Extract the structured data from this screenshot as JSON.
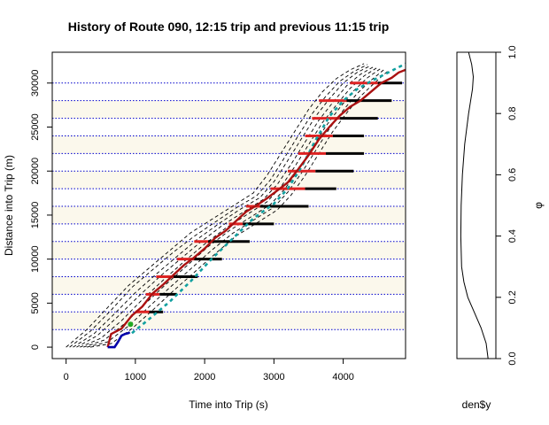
{
  "chart_data": [
    {
      "type": "line",
      "title": "History of Route 090, 12:15 trip and previous 11:15 trip",
      "xlabel": "Time into Trip (s)",
      "ylabel": "Distance into Trip (m)",
      "xlim": [
        -200,
        4900
      ],
      "ylim": [
        -1300,
        33500
      ],
      "xticks": [
        0,
        1000,
        2000,
        3000,
        4000
      ],
      "yticks": [
        0,
        5000,
        10000,
        15000,
        20000,
        25000,
        30000
      ],
      "colors": {
        "stop_lines": "#0000cc",
        "history": "#000000",
        "current_trip": "#0000aa",
        "current_point": "#22aa22",
        "previous_trip": "#aa1111",
        "prediction": "#11a0a0",
        "dwell_red": "#dd2222",
        "dwell_black": "#000000",
        "segment_band": "#fbf8ec"
      },
      "stop_distances": [
        2000,
        4000,
        6000,
        8000,
        10000,
        12000,
        14000,
        16000,
        18000,
        20000,
        22000,
        24000,
        26000,
        28000,
        30000
      ],
      "history_trips": [
        {
          "x": [
            0,
            300,
            600,
            900,
            1200,
            1500,
            1800,
            2100,
            2400,
            2700,
            2900,
            3100,
            3300,
            3500,
            3700,
            3900,
            4100,
            4300
          ],
          "y": [
            0,
            2000,
            4500,
            7000,
            9000,
            11000,
            13000,
            14500,
            16000,
            17500,
            19500,
            22000,
            24500,
            27000,
            29000,
            30500,
            31500,
            32200
          ]
        },
        {
          "x": [
            50,
            350,
            650,
            950,
            1250,
            1550,
            1850,
            2150,
            2450,
            2750,
            2950,
            3150,
            3350,
            3550,
            3750,
            3950,
            4150,
            4350
          ],
          "y": [
            0,
            1800,
            4200,
            6800,
            8800,
            10800,
            12600,
            14200,
            15800,
            17200,
            19000,
            21500,
            24000,
            26500,
            28500,
            30200,
            31300,
            32100
          ]
        },
        {
          "x": [
            100,
            400,
            700,
            1000,
            1300,
            1600,
            1900,
            2200,
            2500,
            2800,
            3000,
            3200,
            3400,
            3600,
            3800,
            4000,
            4200,
            4400
          ],
          "y": [
            0,
            1500,
            3800,
            6200,
            8300,
            10300,
            12300,
            14000,
            15600,
            17000,
            18800,
            21200,
            23700,
            26200,
            28200,
            30000,
            31200,
            32000
          ]
        },
        {
          "x": [
            150,
            450,
            750,
            1050,
            1350,
            1650,
            1950,
            2250,
            2550,
            2850,
            3050,
            3250,
            3450,
            3650,
            3850,
            4050,
            4250,
            4450
          ],
          "y": [
            0,
            1300,
            3500,
            5800,
            8000,
            10000,
            12000,
            13800,
            15300,
            16800,
            18500,
            20800,
            23300,
            25800,
            27800,
            29700,
            31000,
            31900
          ]
        },
        {
          "x": [
            200,
            500,
            800,
            1100,
            1400,
            1700,
            2000,
            2300,
            2600,
            2900,
            3100,
            3300,
            3500,
            3700,
            3900,
            4100,
            4300,
            4500
          ],
          "y": [
            0,
            1000,
            3000,
            5400,
            7600,
            9700,
            11700,
            13500,
            15000,
            16500,
            18200,
            20500,
            23000,
            25500,
            27500,
            29400,
            30800,
            31800
          ]
        },
        {
          "x": [
            250,
            550,
            850,
            1150,
            1450,
            1750,
            2050,
            2350,
            2650,
            2950,
            3150,
            3350,
            3550,
            3750,
            3950,
            4150,
            4350,
            4550
          ],
          "y": [
            0,
            800,
            2700,
            5000,
            7200,
            9300,
            11400,
            13200,
            14700,
            16200,
            17900,
            20100,
            22600,
            25100,
            27200,
            29100,
            30600,
            31700
          ]
        },
        {
          "x": [
            300,
            600,
            900,
            1200,
            1500,
            1800,
            2100,
            2400,
            2700,
            3000,
            3200,
            3400,
            3600,
            3800,
            4000,
            4200,
            4400,
            4600
          ],
          "y": [
            0,
            600,
            2400,
            4600,
            6800,
            8900,
            11000,
            12900,
            14400,
            15900,
            17600,
            19800,
            22300,
            24800,
            26900,
            28800,
            30300,
            31600
          ]
        },
        {
          "x": [
            350,
            650,
            950,
            1250,
            1550,
            1850,
            2150,
            2450,
            2750,
            3050,
            3250,
            3450,
            3650,
            3850,
            4050,
            4250,
            4450,
            4650
          ],
          "y": [
            0,
            400,
            2100,
            4200,
            6400,
            8500,
            10600,
            12600,
            14100,
            15600,
            17300,
            19500,
            22000,
            24500,
            26600,
            28500,
            30000,
            31400
          ]
        }
      ],
      "current_trip": {
        "x": [
          600,
          700,
          750,
          800,
          850,
          900,
          920
        ],
        "y": [
          0,
          0,
          600,
          1300,
          1500,
          1600,
          1700
        ]
      },
      "current_point": {
        "x": 930,
        "y": 2600
      },
      "previous_trip": {
        "x": [
          600,
          650,
          800,
          950,
          1100,
          1250,
          1400,
          1550,
          1700,
          1850,
          2000,
          2150,
          2300,
          2450,
          2600,
          2750,
          2900,
          3050,
          3200,
          3350,
          3500,
          3650,
          3800,
          3950,
          4100,
          4250,
          4400,
          4550,
          4700,
          4800,
          4900
        ],
        "y": [
          0,
          1500,
          2100,
          3600,
          4600,
          6100,
          7100,
          8200,
          9300,
          10200,
          11200,
          12400,
          13200,
          14300,
          15400,
          16100,
          16900,
          17800,
          18700,
          20200,
          21800,
          23600,
          25000,
          26300,
          27300,
          28000,
          29000,
          30000,
          30600,
          31200,
          31500
        ]
      },
      "prediction": {
        "x": [
          950,
          1200,
          1500,
          1800,
          2100,
          2400,
          2700,
          3000,
          3200,
          3400,
          3600,
          3800,
          4000,
          4200,
          4400,
          4600,
          4800,
          4900
        ],
        "y": [
          1600,
          3200,
          5200,
          7500,
          10000,
          12300,
          14600,
          16300,
          18000,
          20500,
          23500,
          26200,
          28000,
          29300,
          30200,
          31000,
          31800,
          32200
        ]
      },
      "dwell_segments": [
        {
          "y": 4000,
          "red": [
            1000,
            1200
          ],
          "black": [
            1200,
            1400
          ]
        },
        {
          "y": 6000,
          "red": [
            1150,
            1350
          ],
          "black": [
            1350,
            1600
          ]
        },
        {
          "y": 8000,
          "red": [
            1300,
            1550
          ],
          "black": [
            1550,
            1900
          ]
        },
        {
          "y": 10000,
          "red": [
            1600,
            1850
          ],
          "black": [
            1850,
            2250
          ]
        },
        {
          "y": 12000,
          "red": [
            1850,
            2050
          ],
          "black": [
            2050,
            2650
          ]
        },
        {
          "y": 14000,
          "red": [
            2350,
            2550
          ],
          "black": [
            2550,
            3000
          ]
        },
        {
          "y": 16000,
          "red": [
            2600,
            2800
          ],
          "black": [
            2800,
            3500
          ]
        },
        {
          "y": 18000,
          "red": [
            2950,
            3450
          ],
          "black": [
            3450,
            3900
          ]
        },
        {
          "y": 20000,
          "red": [
            3200,
            3600
          ],
          "black": [
            3600,
            4150
          ]
        },
        {
          "y": 22000,
          "red": [
            3350,
            3750
          ],
          "black": [
            3750,
            4300
          ]
        },
        {
          "y": 24000,
          "red": [
            3450,
            3850
          ],
          "black": [
            3850,
            4300
          ]
        },
        {
          "y": 26000,
          "red": [
            3550,
            3950
          ],
          "black": [
            3950,
            4500
          ]
        },
        {
          "y": 28000,
          "red": [
            3650,
            4050
          ],
          "black": [
            4050,
            4700
          ]
        },
        {
          "y": 30000,
          "red": [
            4100,
            4500
          ],
          "black": [
            4500,
            4850
          ]
        }
      ]
    },
    {
      "type": "line",
      "xlabel": "den$y",
      "ylabel": "φ",
      "ylim": [
        0,
        1
      ],
      "yticks": [
        0.0,
        0.2,
        0.4,
        0.6,
        0.8,
        1.0
      ],
      "density_curve": {
        "x": [
          0.8,
          0.75,
          0.62,
          0.45,
          0.28,
          0.18,
          0.12,
          0.1,
          0.11,
          0.14,
          0.2,
          0.3,
          0.4,
          0.42,
          0.38,
          0.3
        ],
        "y": [
          0.0,
          0.05,
          0.1,
          0.15,
          0.2,
          0.25,
          0.3,
          0.4,
          0.5,
          0.6,
          0.7,
          0.8,
          0.88,
          0.92,
          0.96,
          1.0
        ]
      }
    }
  ]
}
